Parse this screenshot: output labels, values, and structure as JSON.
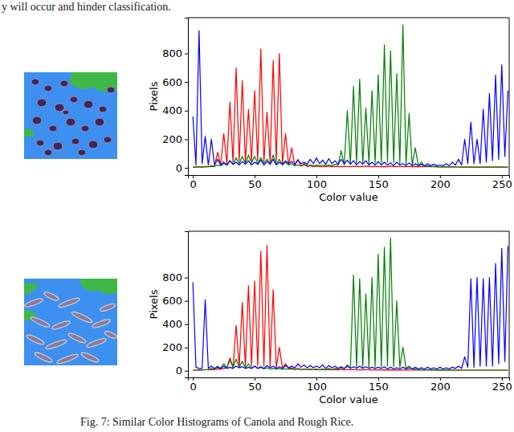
{
  "page_text": {
    "top": "y will occur and hinder classification.",
    "caption": "Fig. 7: Similar Color Histograms of Canola and Rough Rice."
  },
  "chart_data": [
    {
      "type": "line",
      "x_label": "Color value",
      "y_label": "Pixels",
      "xlim": [
        -4,
        256
      ],
      "ylim": [
        -50,
        1050
      ],
      "xticks": [
        0,
        50,
        100,
        150,
        200,
        250
      ],
      "yticks": [
        0,
        200,
        400,
        600,
        800
      ],
      "x": [
        0,
        2.5,
        5,
        7.5,
        10,
        12.5,
        15,
        17.5,
        20,
        22.5,
        25,
        27.5,
        30,
        32.5,
        35,
        37.5,
        40,
        42.5,
        45,
        47.5,
        50,
        52.5,
        55,
        57.5,
        60,
        62.5,
        65,
        67.5,
        70,
        72.5,
        75,
        77.5,
        80,
        82.5,
        85,
        87.5,
        90,
        92.5,
        95,
        97.5,
        100,
        102.5,
        105,
        107.5,
        110,
        112.5,
        115,
        117.5,
        120,
        122.5,
        125,
        127.5,
        130,
        132.5,
        135,
        137.5,
        140,
        142.5,
        145,
        147.5,
        150,
        152.5,
        155,
        157.5,
        160,
        162.5,
        165,
        167.5,
        170,
        172.5,
        175,
        177.5,
        180,
        182.5,
        185,
        187.5,
        190,
        192.5,
        195,
        197.5,
        200,
        202.5,
        205,
        207.5,
        210,
        212.5,
        215,
        217.5,
        220,
        222.5,
        225,
        227.5,
        230,
        232.5,
        235,
        237.5,
        240,
        242.5,
        245,
        247.5,
        250,
        252.5,
        255
      ],
      "series": [
        {
          "color": "#ff0000",
          "values": [
            5,
            5,
            8,
            5,
            10,
            8,
            15,
            10,
            110,
            20,
            240,
            30,
            460,
            40,
            700,
            50,
            610,
            40,
            410,
            45,
            540,
            50,
            830,
            45,
            390,
            40,
            750,
            45,
            800,
            30,
            240,
            20,
            140,
            15,
            60,
            12,
            30,
            10,
            15,
            10,
            12,
            10,
            8,
            10,
            12,
            8,
            10,
            10,
            8,
            10,
            10,
            8,
            12,
            10,
            8,
            10,
            12,
            10,
            8,
            10,
            10,
            8,
            10,
            8,
            12,
            10,
            8,
            10,
            10,
            8,
            10,
            8,
            10,
            8,
            10,
            8,
            10,
            8,
            8,
            6,
            8,
            6,
            8,
            6,
            8,
            6,
            6,
            5,
            6,
            5,
            6,
            5,
            6,
            5,
            5,
            5,
            6,
            5,
            5,
            5,
            5,
            5,
            6
          ]
        },
        {
          "color": "#008000",
          "values": [
            5,
            5,
            8,
            5,
            10,
            8,
            10,
            10,
            20,
            15,
            30,
            20,
            50,
            25,
            70,
            30,
            80,
            30,
            90,
            35,
            80,
            30,
            70,
            30,
            60,
            25,
            90,
            25,
            60,
            20,
            40,
            20,
            30,
            15,
            20,
            15,
            20,
            15,
            20,
            15,
            20,
            15,
            20,
            15,
            20,
            15,
            25,
            20,
            120,
            20,
            400,
            25,
            570,
            30,
            620,
            30,
            420,
            30,
            540,
            35,
            650,
            35,
            860,
            40,
            820,
            35,
            660,
            30,
            1000,
            25,
            380,
            20,
            140,
            15,
            40,
            10,
            15,
            10,
            10,
            8,
            8,
            6,
            8,
            6,
            8,
            6,
            6,
            5,
            6,
            5,
            6,
            5,
            6,
            5,
            5,
            5,
            6,
            5,
            5,
            5,
            5,
            5,
            6
          ]
        },
        {
          "color": "#0000ff",
          "values": [
            360,
            20,
            960,
            30,
            220,
            20,
            200,
            20,
            60,
            20,
            40,
            20,
            50,
            25,
            40,
            20,
            45,
            25,
            50,
            20,
            40,
            25,
            55,
            20,
            45,
            25,
            60,
            20,
            40,
            25,
            50,
            30,
            45,
            25,
            55,
            30,
            40,
            25,
            60,
            30,
            70,
            30,
            55,
            25,
            65,
            30,
            50,
            25,
            60,
            30,
            55,
            25,
            50,
            20,
            45,
            25,
            50,
            20,
            40,
            20,
            45,
            20,
            40,
            20,
            35,
            15,
            40,
            20,
            30,
            15,
            35,
            15,
            30,
            15,
            25,
            15,
            30,
            15,
            25,
            15,
            20,
            15,
            30,
            15,
            40,
            20,
            60,
            20,
            200,
            30,
            320,
            30,
            200,
            30,
            410,
            40,
            520,
            50,
            650,
            60,
            720,
            80,
            540
          ]
        }
      ]
    },
    {
      "type": "line",
      "x_label": "Color value",
      "y_label": "Pixels",
      "xlim": [
        -4,
        256
      ],
      "ylim": [
        -57,
        1197
      ],
      "xticks": [
        0,
        50,
        100,
        150,
        200,
        250
      ],
      "yticks": [
        0,
        200,
        400,
        600,
        800
      ],
      "x": [
        0,
        2.5,
        5,
        7.5,
        10,
        12.5,
        15,
        17.5,
        20,
        22.5,
        25,
        27.5,
        30,
        32.5,
        35,
        37.5,
        40,
        42.5,
        45,
        47.5,
        50,
        52.5,
        55,
        57.5,
        60,
        62.5,
        65,
        67.5,
        70,
        72.5,
        75,
        77.5,
        80,
        82.5,
        85,
        87.5,
        90,
        92.5,
        95,
        97.5,
        100,
        102.5,
        105,
        107.5,
        110,
        112.5,
        115,
        117.5,
        120,
        122.5,
        125,
        127.5,
        130,
        132.5,
        135,
        137.5,
        140,
        142.5,
        145,
        147.5,
        150,
        152.5,
        155,
        157.5,
        160,
        162.5,
        165,
        167.5,
        170,
        172.5,
        175,
        177.5,
        180,
        182.5,
        185,
        187.5,
        190,
        192.5,
        195,
        197.5,
        200,
        202.5,
        205,
        207.5,
        210,
        212.5,
        215,
        217.5,
        220,
        222.5,
        225,
        227.5,
        230,
        232.5,
        235,
        237.5,
        240,
        242.5,
        245,
        247.5,
        250,
        252.5,
        255
      ],
      "series": [
        {
          "color": "#ff0000",
          "values": [
            5,
            5,
            8,
            5,
            10,
            8,
            10,
            10,
            15,
            15,
            20,
            25,
            110,
            30,
            390,
            35,
            585,
            40,
            730,
            40,
            770,
            40,
            1025,
            40,
            1075,
            35,
            695,
            30,
            200,
            25,
            60,
            20,
            25,
            15,
            20,
            12,
            15,
            10,
            12,
            10,
            10,
            8,
            10,
            8,
            10,
            8,
            10,
            8,
            10,
            8,
            10,
            8,
            10,
            8,
            8,
            8,
            10,
            8,
            8,
            8,
            8,
            6,
            8,
            6,
            8,
            6,
            8,
            6,
            6,
            6,
            6,
            5,
            6,
            5,
            6,
            5,
            6,
            5,
            5,
            5,
            5,
            5,
            5,
            5,
            5,
            5,
            5,
            5,
            5,
            5,
            5,
            5,
            5,
            5,
            5,
            5,
            5,
            5,
            5,
            5,
            5,
            5,
            5
          ]
        },
        {
          "color": "#008000",
          "values": [
            5,
            5,
            8,
            5,
            10,
            10,
            20,
            15,
            40,
            20,
            60,
            25,
            90,
            30,
            100,
            30,
            80,
            25,
            60,
            20,
            40,
            20,
            30,
            15,
            25,
            15,
            20,
            15,
            20,
            15,
            15,
            15,
            15,
            10,
            15,
            10,
            15,
            10,
            15,
            10,
            15,
            10,
            15,
            10,
            20,
            10,
            20,
            15,
            25,
            15,
            50,
            20,
            820,
            30,
            790,
            30,
            660,
            30,
            800,
            35,
            1000,
            35,
            1060,
            40,
            1140,
            35,
            600,
            30,
            200,
            20,
            40,
            15,
            15,
            10,
            10,
            8,
            10,
            8,
            8,
            6,
            8,
            6,
            8,
            6,
            6,
            6,
            6,
            5,
            5,
            5,
            5,
            5,
            5,
            5,
            5,
            5,
            5,
            5,
            5,
            5,
            5,
            5,
            5
          ]
        },
        {
          "color": "#0000ff",
          "values": [
            760,
            30,
            20,
            20,
            610,
            20,
            40,
            20,
            30,
            20,
            40,
            20,
            30,
            20,
            40,
            25,
            35,
            20,
            30,
            20,
            40,
            20,
            35,
            20,
            45,
            25,
            40,
            20,
            35,
            20,
            45,
            25,
            40,
            25,
            60,
            30,
            50,
            25,
            45,
            25,
            40,
            25,
            50,
            20,
            45,
            25,
            40,
            20,
            35,
            20,
            40,
            20,
            35,
            20,
            40,
            20,
            35,
            20,
            30,
            20,
            30,
            20,
            35,
            15,
            30,
            15,
            25,
            15,
            30,
            15,
            25,
            15,
            30,
            15,
            25,
            15,
            30,
            15,
            25,
            15,
            30,
            15,
            25,
            15,
            30,
            20,
            40,
            20,
            120,
            30,
            790,
            30,
            800,
            40,
            790,
            40,
            800,
            40,
            920,
            60,
            1050,
            80,
            1070
          ]
        }
      ]
    }
  ]
}
